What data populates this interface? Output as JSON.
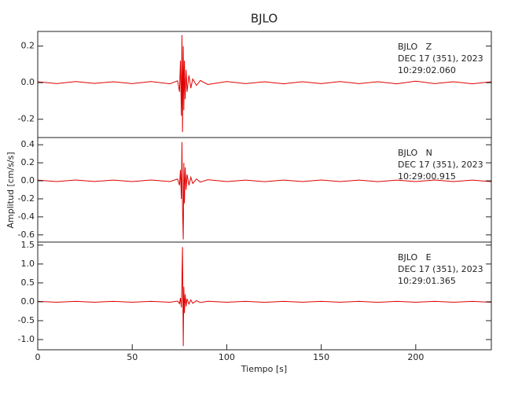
{
  "title": "BJLO",
  "xlabel": "Tiempo [s]",
  "ylabel": "Amplitud [cm/s/s]",
  "chart_data": [
    {
      "type": "line",
      "color": "#e00000",
      "annotation": [
        "BJLO   Z",
        "DEC 17 (351), 2023",
        "10:29:02.060"
      ],
      "xlim": [
        0,
        240
      ],
      "ylim": [
        -0.3,
        0.28
      ],
      "yticks": [
        -0.2,
        {
          "value": 0,
          "label": "0.0"
        },
        0.2
      ],
      "x": [
        0,
        10,
        20,
        30,
        40,
        50,
        60,
        70,
        74,
        75,
        75.5,
        76,
        76.3,
        76.6,
        77,
        77.3,
        77.6,
        78,
        78.5,
        79,
        80,
        81,
        82,
        84,
        86,
        90,
        100,
        110,
        120,
        130,
        140,
        150,
        160,
        170,
        180,
        190,
        200,
        210,
        220,
        230,
        240
      ],
      "values": [
        0.005,
        -0.005,
        0.006,
        -0.004,
        0.005,
        -0.005,
        0.006,
        -0.006,
        0.01,
        -0.05,
        0.12,
        -0.18,
        0.26,
        -0.27,
        0.2,
        -0.15,
        0.12,
        -0.09,
        0.07,
        -0.05,
        0.04,
        -0.03,
        0.02,
        -0.015,
        0.012,
        -0.01,
        0.006,
        -0.005,
        0.005,
        -0.006,
        0.005,
        -0.005,
        0.006,
        -0.005,
        0.005,
        -0.006,
        0.008,
        -0.005,
        0.005,
        -0.006,
        0.005
      ]
    },
    {
      "type": "line",
      "color": "#e00000",
      "annotation": [
        "BJLO   N",
        "DEC 17 (351), 2023",
        "10:29:00.915"
      ],
      "xlim": [
        0,
        240
      ],
      "ylim": [
        -0.68,
        0.48
      ],
      "yticks": [
        -0.6,
        -0.4,
        -0.2,
        {
          "value": 0,
          "label": "0.0"
        },
        0.2,
        0.4
      ],
      "x": [
        0,
        10,
        20,
        30,
        40,
        50,
        60,
        70,
        74,
        75,
        75.5,
        76,
        76.3,
        76.6,
        77,
        77.3,
        77.6,
        78,
        78.5,
        79,
        80,
        81,
        82,
        84,
        86,
        90,
        100,
        110,
        120,
        130,
        140,
        150,
        160,
        170,
        180,
        190,
        200,
        210,
        220,
        230,
        240
      ],
      "values": [
        0.008,
        -0.008,
        0.009,
        -0.007,
        0.008,
        -0.008,
        0.009,
        -0.008,
        0.02,
        -0.05,
        0.12,
        -0.2,
        0.43,
        -0.3,
        -0.65,
        0.2,
        -0.25,
        0.15,
        -0.1,
        0.07,
        -0.05,
        0.04,
        -0.03,
        0.02,
        -0.015,
        0.012,
        -0.008,
        0.008,
        -0.009,
        0.008,
        -0.008,
        0.009,
        -0.008,
        0.008,
        -0.009,
        0.008,
        -0.008,
        0.009,
        -0.008,
        0.008,
        -0.009
      ]
    },
    {
      "type": "line",
      "color": "#e00000",
      "annotation": [
        "BJLO   E",
        "DEC 17 (351), 2023",
        "10:29:01.365"
      ],
      "xlim": [
        0,
        240
      ],
      "ylim": [
        -1.27,
        1.58
      ],
      "xticks": [
        0,
        50,
        100,
        150,
        200
      ],
      "yticks": [
        {
          "value": -1,
          "label": "-1.0"
        },
        -0.5,
        {
          "value": 0,
          "label": "0.0"
        },
        0.5,
        {
          "value": 1,
          "label": "1.0"
        },
        1.5
      ],
      "x": [
        0,
        10,
        20,
        30,
        40,
        50,
        60,
        70,
        74,
        75,
        75.5,
        76,
        76.3,
        76.6,
        77,
        77.3,
        77.6,
        78,
        78.5,
        79,
        80,
        81,
        82,
        84,
        86,
        90,
        100,
        110,
        120,
        130,
        140,
        150,
        160,
        170,
        180,
        190,
        200,
        210,
        220,
        230,
        240
      ],
      "values": [
        0.012,
        -0.012,
        0.013,
        -0.011,
        0.012,
        -0.012,
        0.013,
        -0.012,
        0.02,
        -0.05,
        0.1,
        -0.15,
        0.6,
        1.45,
        -1.17,
        0.4,
        -0.3,
        0.2,
        -0.12,
        0.08,
        -0.06,
        0.05,
        -0.04,
        0.03,
        -0.02,
        0.015,
        -0.012,
        0.012,
        -0.013,
        0.012,
        -0.012,
        0.013,
        -0.012,
        0.012,
        -0.013,
        0.012,
        -0.012,
        0.013,
        -0.012,
        0.012,
        -0.013
      ]
    }
  ]
}
